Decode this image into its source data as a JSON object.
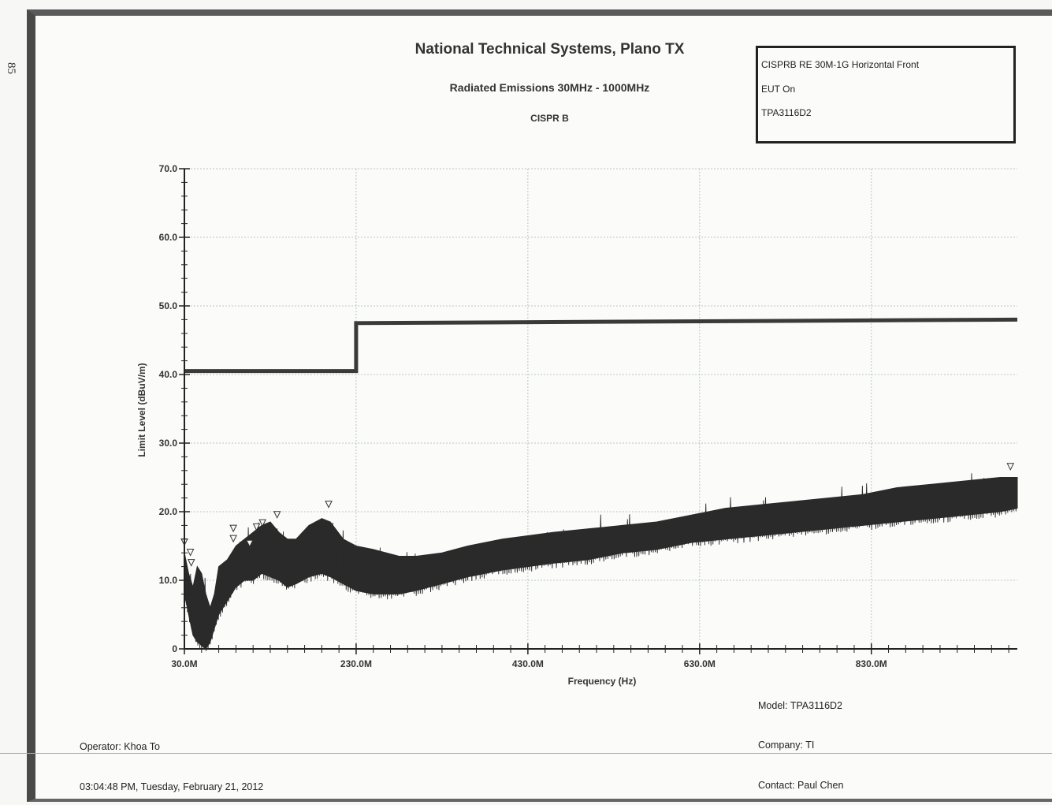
{
  "page_number": "85",
  "header": {
    "title": "National Technical Systems, Plano TX",
    "subtitle": "Radiated Emissions 30MHz - 1000MHz",
    "standard": "CISPR B"
  },
  "infobox": {
    "line1": "CISPRB RE 30M-1G Horizontal Front",
    "line2": "EUT On",
    "line3": "TPA3116D2"
  },
  "footer": {
    "model": "Model: TPA3116D2",
    "operator": "Operator: Khoa To",
    "company": "Company: TI",
    "timestamp": "03:04:48 PM, Tuesday, February 21, 2012",
    "contact": "Contact: Paul Chen"
  },
  "chart_data": {
    "type": "line",
    "xlabel": "Frequency (Hz)",
    "ylabel": "Limit Level (dBuV/m)",
    "xlim": [
      30,
      1000
    ],
    "ylim": [
      0,
      70
    ],
    "x_ticks": [
      "30.0M",
      "230.0M",
      "430.0M",
      "630.0M",
      "830.0M"
    ],
    "x_tick_values": [
      30,
      230,
      430,
      630,
      830
    ],
    "y_ticks": [
      "0",
      "10.0",
      "20.0",
      "30.0",
      "40.0",
      "50.0",
      "60.0",
      "70.0"
    ],
    "y_tick_values": [
      0,
      10,
      20,
      30,
      40,
      50,
      60,
      70
    ],
    "grid": true,
    "series": [
      {
        "role": "limit",
        "color": "#3a3a3a",
        "x": [
          30,
          230,
          230,
          1000
        ],
        "y": [
          40.5,
          40.5,
          47.5,
          48.0
        ]
      },
      {
        "role": "measured-envelope",
        "color": "#2a2a2a",
        "x": [
          30,
          35,
          40,
          45,
          50,
          55,
          60,
          65,
          70,
          80,
          90,
          100,
          110,
          120,
          130,
          140,
          150,
          160,
          175,
          190,
          200,
          215,
          230,
          250,
          280,
          300,
          330,
          360,
          400,
          430,
          460,
          500,
          540,
          580,
          620,
          660,
          700,
          740,
          780,
          820,
          860,
          900,
          940,
          980,
          1000
        ],
        "upper": [
          14,
          11,
          9,
          12,
          11,
          8,
          6,
          8,
          12,
          13,
          15,
          16,
          17,
          18,
          18.5,
          17,
          16,
          16,
          18,
          19,
          18.5,
          16,
          15,
          14.5,
          13.5,
          13.5,
          14,
          15,
          16,
          16.5,
          17,
          17.5,
          18,
          18.5,
          19.5,
          20.5,
          21,
          21.5,
          22,
          22.5,
          23.5,
          24,
          24.5,
          25,
          25
        ],
        "lower": [
          8,
          5,
          2,
          1,
          0.5,
          0,
          1,
          3,
          5,
          7,
          9,
          10,
          10,
          11,
          10.5,
          10,
          9,
          9.5,
          10.5,
          11,
          10.5,
          9.5,
          8.5,
          8,
          8,
          8.5,
          9.5,
          10.5,
          11.5,
          12,
          12.5,
          13,
          14,
          14.5,
          15.5,
          16,
          16.5,
          17,
          17.5,
          18,
          18.5,
          19,
          19.5,
          20,
          20.5
        ]
      }
    ],
    "peak_markers": [
      {
        "x": 30,
        "y": 15
      },
      {
        "x": 37,
        "y": 13.5
      },
      {
        "x": 38,
        "y": 12
      },
      {
        "x": 87,
        "y": 17
      },
      {
        "x": 87,
        "y": 15.5
      },
      {
        "x": 114,
        "y": 17.2
      },
      {
        "x": 121,
        "y": 17.8
      },
      {
        "x": 106,
        "y": 14.8
      },
      {
        "x": 138,
        "y": 19
      },
      {
        "x": 198,
        "y": 20.5
      },
      {
        "x": 992,
        "y": 26
      }
    ]
  }
}
